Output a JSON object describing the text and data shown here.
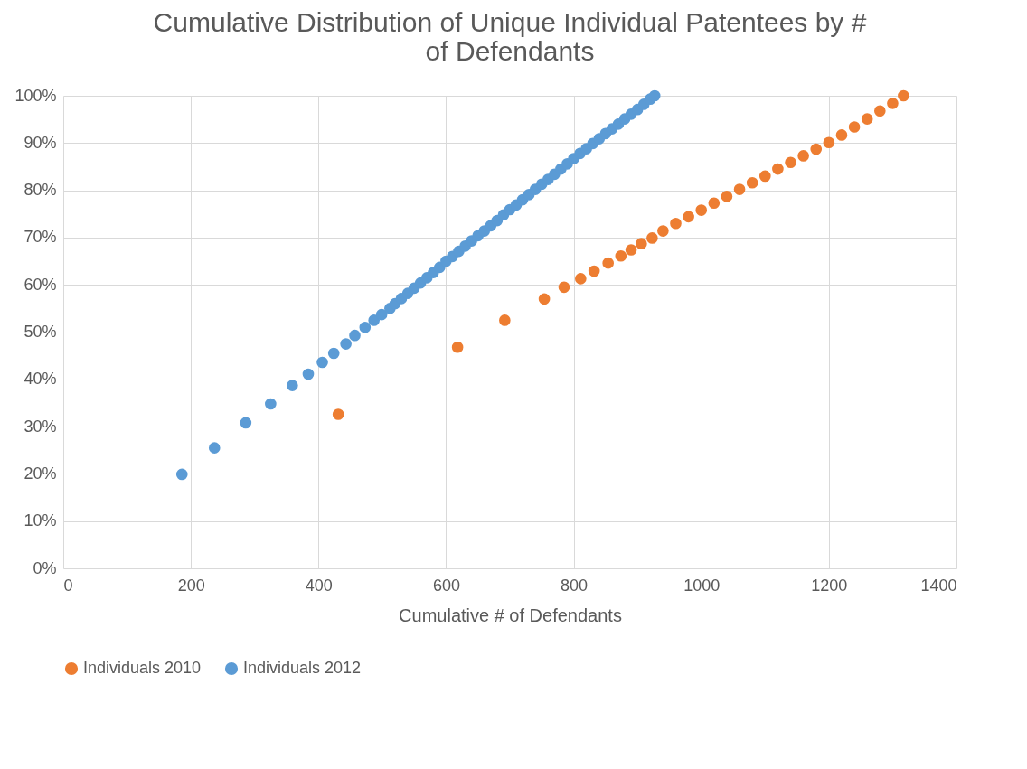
{
  "chart_data": {
    "type": "scatter",
    "title": "Cumulative Distribution of Unique Individual Patentees by # of Defendants",
    "xlabel": "Cumulative # of Defendants",
    "xlim": [
      0,
      1400
    ],
    "xticks": [
      0,
      200,
      400,
      600,
      800,
      1000,
      1200,
      1400
    ],
    "ylim": [
      0,
      100
    ],
    "yticks": [
      {
        "value": 0,
        "label": "0%"
      },
      {
        "value": 10,
        "label": "10%"
      },
      {
        "value": 20,
        "label": "20%"
      },
      {
        "value": 30,
        "label": "30%"
      },
      {
        "value": 40,
        "label": "40%"
      },
      {
        "value": 50,
        "label": "50%"
      },
      {
        "value": 60,
        "label": "60%"
      },
      {
        "value": 70,
        "label": "70%"
      },
      {
        "value": 80,
        "label": "80%"
      },
      {
        "value": 90,
        "label": "90%"
      },
      {
        "value": 100,
        "label": "100%"
      }
    ],
    "grid": true,
    "legend": "bottom",
    "marker": "circle",
    "series": [
      {
        "name": "Individuals 2010",
        "color": "#ed7d31",
        "x": [
          431,
          618,
          692,
          754,
          785,
          811,
          832,
          854,
          874,
          890,
          906,
          923,
          940,
          960,
          980,
          1000,
          1020,
          1040,
          1060,
          1080,
          1100,
          1120,
          1140,
          1160,
          1180,
          1200,
          1220,
          1240,
          1260,
          1280,
          1300,
          1317
        ],
        "values": [
          32.6,
          46.8,
          52.5,
          57.0,
          59.5,
          61.3,
          62.9,
          64.6,
          66.1,
          67.4,
          68.7,
          69.9,
          71.4,
          73.0,
          74.4,
          75.8,
          77.3,
          78.7,
          80.2,
          81.6,
          83.0,
          84.5,
          85.9,
          87.3,
          88.7,
          90.1,
          91.7,
          93.4,
          95.1,
          96.8,
          98.4,
          100
        ]
      },
      {
        "name": "Individuals 2012",
        "color": "#5b9bd5",
        "x": [
          186,
          237,
          286,
          325,
          359,
          384,
          406,
          424,
          443,
          457,
          473,
          487,
          499,
          512,
          520,
          530,
          540,
          550,
          560,
          570,
          580,
          590,
          600,
          610,
          620,
          630,
          640,
          650,
          660,
          670,
          680,
          690,
          700,
          710,
          720,
          730,
          740,
          750,
          760,
          770,
          780,
          790,
          800,
          810,
          820,
          830,
          840,
          850,
          860,
          870,
          880,
          890,
          900,
          910,
          920,
          927
        ],
        "values": [
          19.9,
          25.5,
          30.8,
          34.8,
          38.7,
          41.1,
          43.6,
          45.5,
          47.5,
          49.3,
          51.0,
          52.5,
          53.7,
          55.0,
          56.0,
          57.1,
          58.2,
          59.3,
          60.4,
          61.5,
          62.6,
          63.7,
          65.0,
          66.0,
          67.1,
          68.2,
          69.3,
          70.4,
          71.4,
          72.5,
          73.6,
          74.8,
          75.9,
          76.9,
          78.0,
          79.1,
          80.2,
          81.3,
          82.3,
          83.4,
          84.5,
          85.6,
          86.7,
          87.8,
          88.8,
          89.9,
          90.9,
          92.0,
          93.0,
          94.0,
          95.1,
          96.1,
          97.1,
          98.2,
          99.3,
          100
        ]
      }
    ]
  }
}
